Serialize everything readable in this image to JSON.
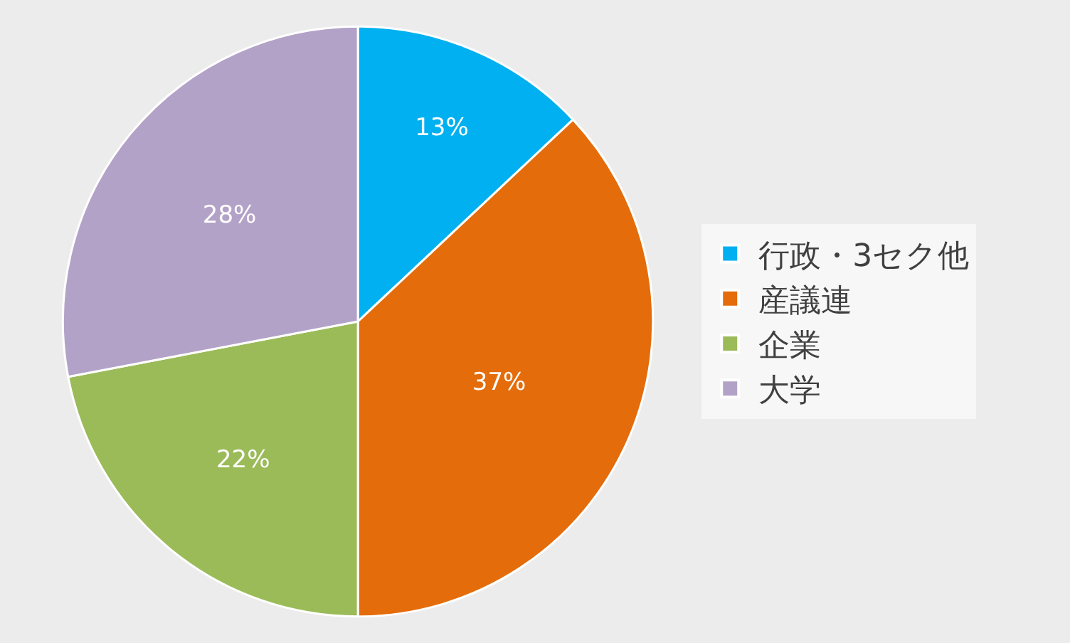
{
  "chart_data": {
    "type": "pie",
    "categories": [
      "行政・3セク他",
      "産議連",
      "企業",
      "大学"
    ],
    "values": [
      13,
      37,
      22,
      28
    ],
    "value_labels": [
      "13%",
      "37%",
      "22%",
      "28%"
    ],
    "colors": [
      "#00b0f0",
      "#e46c0a",
      "#9bbb59",
      "#b3a2c7"
    ],
    "legend": "right"
  }
}
